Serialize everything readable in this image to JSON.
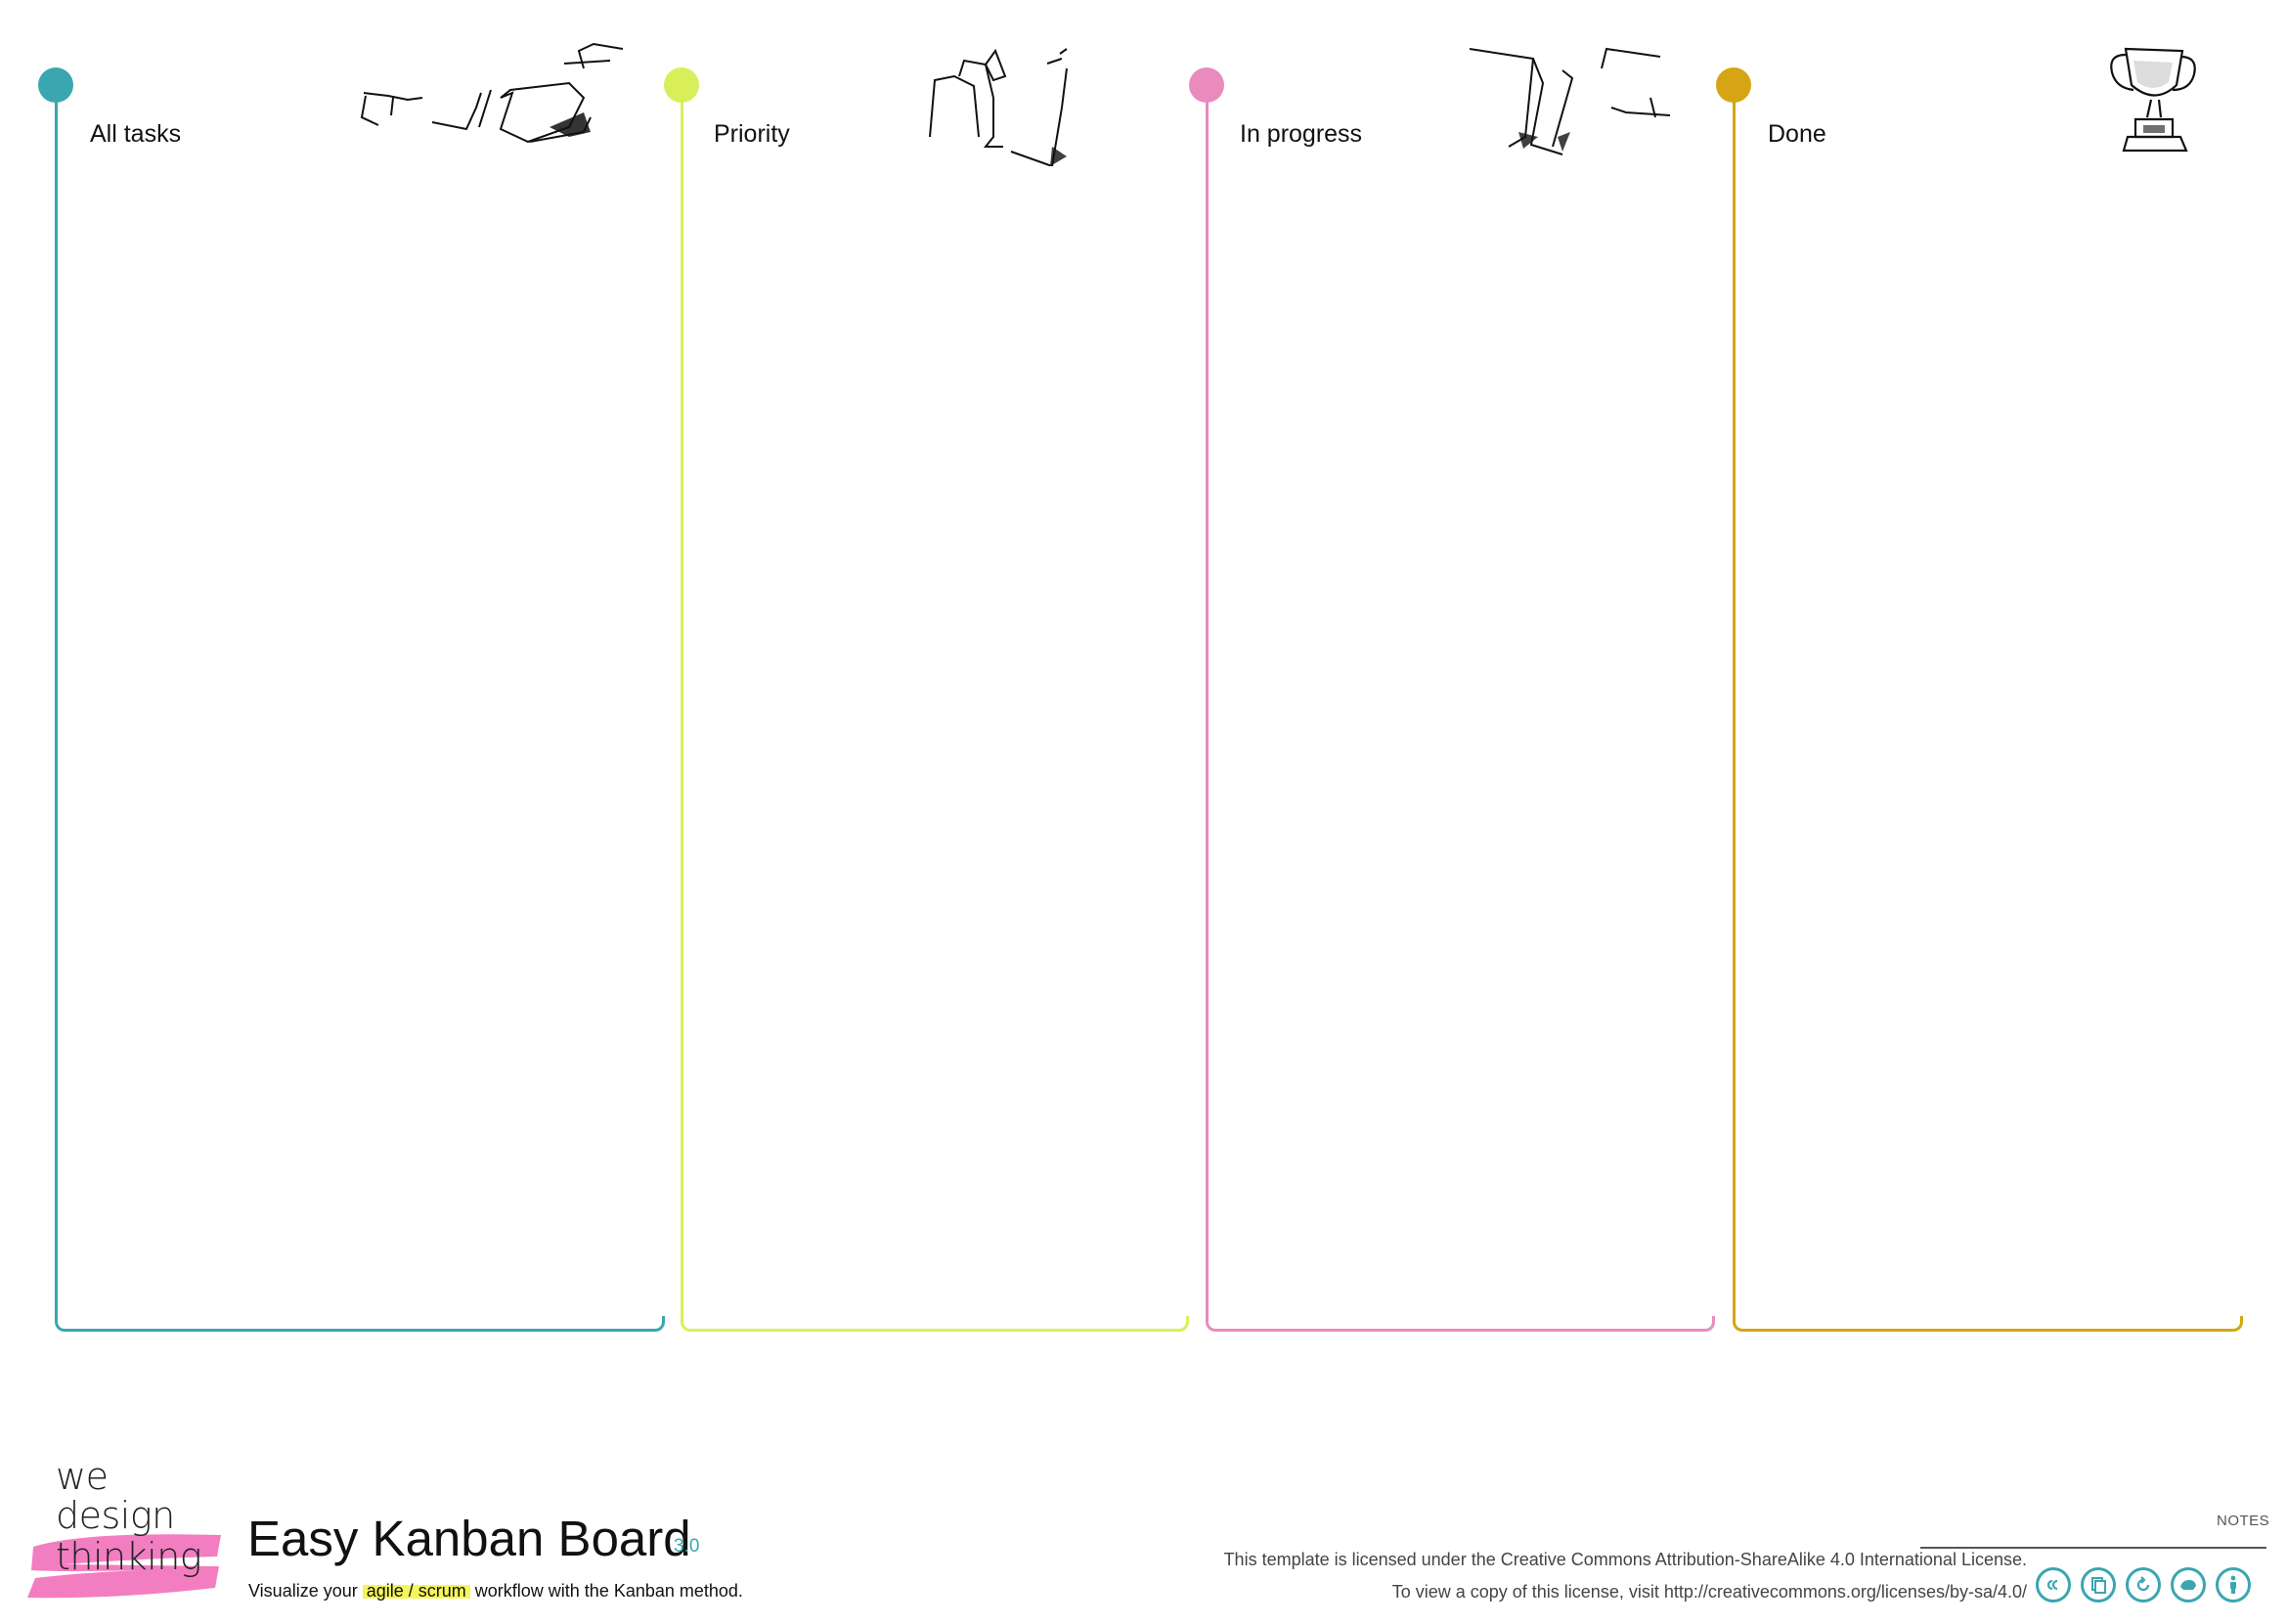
{
  "board": {
    "columns": [
      {
        "id": "all-tasks",
        "label": "All tasks",
        "color": "#3aa6b0",
        "sketch": "paper-airplanes-icon"
      },
      {
        "id": "priority",
        "label": "Priority",
        "color": "#d9ef5a",
        "sketch": "paper-stack-icon"
      },
      {
        "id": "in-progress",
        "label": "In progress",
        "color": "#e98bbd",
        "sketch": "flying-papers-icon"
      },
      {
        "id": "done",
        "label": "Done",
        "color": "#d6a514",
        "sketch": "trophy-icon"
      }
    ]
  },
  "brand": {
    "logo_lines": [
      "we",
      "design",
      "thinking"
    ],
    "brush_color": "#f06cb8"
  },
  "header": {
    "title": "Easy Kanban Board",
    "version": "3.0",
    "subtitle_before": "Visualize your ",
    "subtitle_highlight": "agile / scrum",
    "subtitle_after": " workflow with the Kanban method."
  },
  "footer": {
    "notes_label": "NOTES",
    "license_line_1": "This template is licensed under the Creative Commons Attribution-ShareAlike 4.0 International License.",
    "license_line_2": "To view a copy of this license, visit http://creativecommons.org/licenses/by-sa/4.0/",
    "cc_icons": [
      "cc-icon",
      "share-icon",
      "remix-icon",
      "noncommercial-icon",
      "attribution-icon"
    ],
    "accent_color": "#3aa6b0"
  }
}
